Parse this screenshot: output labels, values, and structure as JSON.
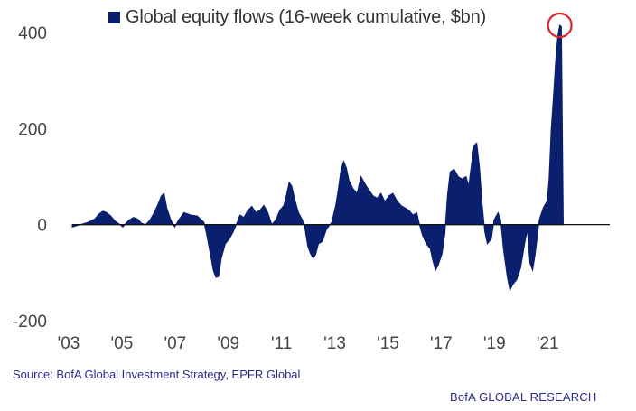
{
  "chart_data": {
    "type": "area",
    "title": "",
    "series": [
      {
        "name": "Global equity flows (16-week cumulative, $bn)",
        "color": "#0a1f6e",
        "points": [
          [
            2003.0,
            -5
          ],
          [
            2003.3,
            0
          ],
          [
            2003.6,
            5
          ],
          [
            2003.85,
            12
          ],
          [
            2004.0,
            22
          ],
          [
            2004.15,
            28
          ],
          [
            2004.3,
            25
          ],
          [
            2004.45,
            18
          ],
          [
            2004.6,
            8
          ],
          [
            2004.75,
            2
          ],
          [
            2004.9,
            -5
          ],
          [
            2005.0,
            2
          ],
          [
            2005.15,
            10
          ],
          [
            2005.3,
            15
          ],
          [
            2005.45,
            12
          ],
          [
            2005.6,
            3
          ],
          [
            2005.75,
            0
          ],
          [
            2005.9,
            8
          ],
          [
            2006.05,
            22
          ],
          [
            2006.2,
            40
          ],
          [
            2006.35,
            60
          ],
          [
            2006.45,
            65
          ],
          [
            2006.55,
            35
          ],
          [
            2006.7,
            10
          ],
          [
            2006.85,
            -5
          ],
          [
            2007.0,
            10
          ],
          [
            2007.2,
            25
          ],
          [
            2007.45,
            20
          ],
          [
            2007.7,
            18
          ],
          [
            2007.95,
            5
          ],
          [
            2008.05,
            -20
          ],
          [
            2008.2,
            -65
          ],
          [
            2008.3,
            -95
          ],
          [
            2008.4,
            -110
          ],
          [
            2008.5,
            -108
          ],
          [
            2008.6,
            -70
          ],
          [
            2008.75,
            -40
          ],
          [
            2008.9,
            -30
          ],
          [
            2009.05,
            -15
          ],
          [
            2009.2,
            5
          ],
          [
            2009.3,
            20
          ],
          [
            2009.45,
            15
          ],
          [
            2009.6,
            30
          ],
          [
            2009.75,
            38
          ],
          [
            2009.9,
            25
          ],
          [
            2010.05,
            30
          ],
          [
            2010.2,
            40
          ],
          [
            2010.35,
            25
          ],
          [
            2010.5,
            0
          ],
          [
            2010.65,
            10
          ],
          [
            2010.8,
            30
          ],
          [
            2010.95,
            40
          ],
          [
            2011.05,
            62
          ],
          [
            2011.15,
            88
          ],
          [
            2011.25,
            80
          ],
          [
            2011.35,
            55
          ],
          [
            2011.5,
            25
          ],
          [
            2011.65,
            10
          ],
          [
            2011.75,
            -10
          ],
          [
            2011.85,
            -45
          ],
          [
            2011.95,
            -60
          ],
          [
            2012.05,
            -70
          ],
          [
            2012.15,
            -62
          ],
          [
            2012.25,
            -40
          ],
          [
            2012.4,
            -35
          ],
          [
            2012.55,
            -10
          ],
          [
            2012.75,
            5
          ],
          [
            2012.9,
            40
          ],
          [
            2013.0,
            75
          ],
          [
            2013.1,
            115
          ],
          [
            2013.2,
            132
          ],
          [
            2013.3,
            118
          ],
          [
            2013.4,
            92
          ],
          [
            2013.55,
            75
          ],
          [
            2013.7,
            65
          ],
          [
            2013.85,
            100
          ],
          [
            2014.0,
            85
          ],
          [
            2014.15,
            72
          ],
          [
            2014.3,
            60
          ],
          [
            2014.45,
            55
          ],
          [
            2014.6,
            65
          ],
          [
            2014.75,
            48
          ],
          [
            2014.9,
            60
          ],
          [
            2015.05,
            65
          ],
          [
            2015.2,
            50
          ],
          [
            2015.35,
            40
          ],
          [
            2015.5,
            35
          ],
          [
            2015.65,
            30
          ],
          [
            2015.8,
            20
          ],
          [
            2015.95,
            25
          ],
          [
            2016.05,
            0
          ],
          [
            2016.15,
            -20
          ],
          [
            2016.3,
            -40
          ],
          [
            2016.45,
            -50
          ],
          [
            2016.55,
            -75
          ],
          [
            2016.65,
            -95
          ],
          [
            2016.75,
            -85
          ],
          [
            2016.9,
            -60
          ],
          [
            2017.0,
            -20
          ],
          [
            2017.1,
            60
          ],
          [
            2017.2,
            110
          ],
          [
            2017.35,
            115
          ],
          [
            2017.5,
            100
          ],
          [
            2017.65,
            95
          ],
          [
            2017.8,
            100
          ],
          [
            2017.9,
            80
          ],
          [
            2018.0,
            125
          ],
          [
            2018.1,
            165
          ],
          [
            2018.2,
            170
          ],
          [
            2018.3,
            120
          ],
          [
            2018.4,
            45
          ],
          [
            2018.5,
            -15
          ],
          [
            2018.6,
            -40
          ],
          [
            2018.75,
            -30
          ],
          [
            2018.85,
            10
          ],
          [
            2019.0,
            25
          ],
          [
            2019.1,
            10
          ],
          [
            2019.2,
            -50
          ],
          [
            2019.35,
            -110
          ],
          [
            2019.45,
            -137
          ],
          [
            2019.55,
            -125
          ],
          [
            2019.7,
            -115
          ],
          [
            2019.85,
            -90
          ],
          [
            2020.0,
            -40
          ],
          [
            2020.1,
            -10
          ],
          [
            2020.2,
            -80
          ],
          [
            2020.3,
            -95
          ],
          [
            2020.4,
            -60
          ],
          [
            2020.55,
            10
          ],
          [
            2020.7,
            35
          ],
          [
            2020.85,
            50
          ],
          [
            2020.92,
            95
          ],
          [
            2021.0,
            200
          ],
          [
            2021.08,
            265
          ],
          [
            2021.17,
            345
          ],
          [
            2021.25,
            395
          ],
          [
            2021.32,
            415
          ],
          [
            2021.38,
            412
          ],
          [
            2021.45,
            0
          ]
        ]
      }
    ],
    "legend_position": "top",
    "x_ticks": [
      "'03",
      "'05",
      "'07",
      "'09",
      "'11",
      "'13",
      "'15",
      "'17",
      "'19",
      "'21"
    ],
    "x_tick_values": [
      2003,
      2005,
      2007,
      2009,
      2011,
      2013,
      2015,
      2017,
      2019,
      2021
    ],
    "xlim": [
      2003,
      2023.2
    ],
    "y_ticks": [
      "400",
      "200",
      "0",
      "-200"
    ],
    "y_tick_values": [
      400,
      200,
      0,
      -200
    ],
    "ylim": [
      -200,
      430
    ],
    "grid": false,
    "annotation": {
      "type": "circle",
      "x": 2021.32,
      "y": 415,
      "color": "#d6262c"
    }
  },
  "legend": {
    "label": "Global equity flows (16-week cumulative, $bn)",
    "color": "#0a1f6e"
  },
  "footer": {
    "source": "Source:  BofA Global Investment Strategy, EPFR Global",
    "brand": "BofA GLOBAL RESEARCH"
  }
}
